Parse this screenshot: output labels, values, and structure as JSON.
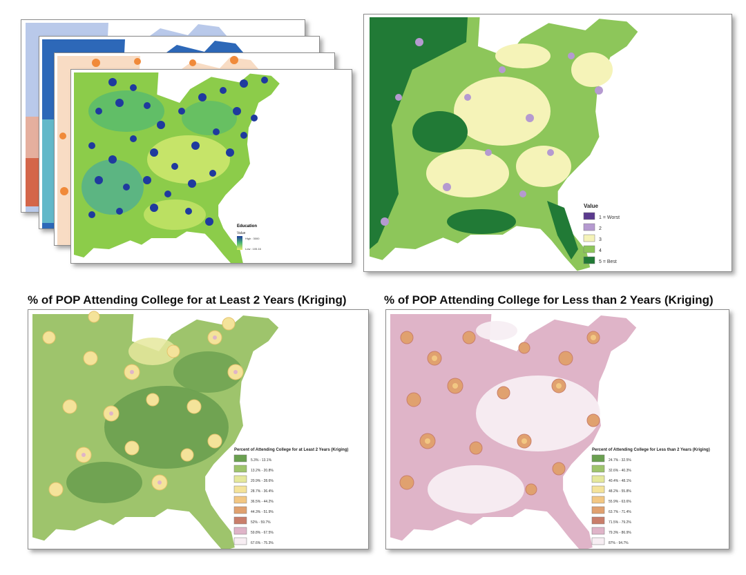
{
  "stack_map": {
    "legend": {
      "title": "Education",
      "subtitle": "Value",
      "high_label": "High : 3000",
      "low_label": "Low : 105.16",
      "high_color": "#1a3b9c",
      "low_color": "#e7ef6a"
    }
  },
  "rank_map": {
    "legend": {
      "title": "Value",
      "items": [
        {
          "label": "1 = Worst",
          "color": "#5b3a8e"
        },
        {
          "label": "2",
          "color": "#b59ad0"
        },
        {
          "label": "3",
          "color": "#f5f3b8"
        },
        {
          "label": "4",
          "color": "#8dc65a"
        },
        {
          "label": "5 = Best",
          "color": "#217a36"
        }
      ]
    }
  },
  "panel_left": {
    "title": "% of POP Attending College for at Least 2 Years (Kriging)",
    "legend": {
      "title": "Percent of Attending College for at Least 2 Years (Kriging)",
      "items": [
        {
          "label": "5.3% - 13.1%",
          "color": "#6aa050"
        },
        {
          "label": "13.2% - 20.8%",
          "color": "#9ec46c"
        },
        {
          "label": "20.9% - 28.6%",
          "color": "#e5e89c"
        },
        {
          "label": "28.7% - 36.4%",
          "color": "#f4e39a"
        },
        {
          "label": "36.5% - 44.2%",
          "color": "#f2c783"
        },
        {
          "label": "44.3% - 51.9%",
          "color": "#e0a16f"
        },
        {
          "label": "52% - 59.7%",
          "color": "#c97e6b"
        },
        {
          "label": "59.8% - 67.5%",
          "color": "#dfb4c8"
        },
        {
          "label": "67.6% - 75.3%",
          "color": "#f7eef3"
        }
      ]
    }
  },
  "panel_right": {
    "title": "% of POP Attending College for Less than 2 Years (Kriging)",
    "legend": {
      "title": "Percent of Attending College for Less than 2 Years (Kriging)",
      "items": [
        {
          "label": "24.7% - 32.5%",
          "color": "#6aa050"
        },
        {
          "label": "32.6% - 40.3%",
          "color": "#9ec46c"
        },
        {
          "label": "40.4% - 48.1%",
          "color": "#e5e89c"
        },
        {
          "label": "48.2% - 55.8%",
          "color": "#f4e39a"
        },
        {
          "label": "55.9% - 63.6%",
          "color": "#f2c783"
        },
        {
          "label": "63.7% - 71.4%",
          "color": "#e0a16f"
        },
        {
          "label": "71.5% - 79.2%",
          "color": "#c97e6b"
        },
        {
          "label": "79.3% - 86.9%",
          "color": "#dfb4c8"
        },
        {
          "label": "87% - 94.7%",
          "color": "#f7eef3"
        }
      ]
    }
  }
}
